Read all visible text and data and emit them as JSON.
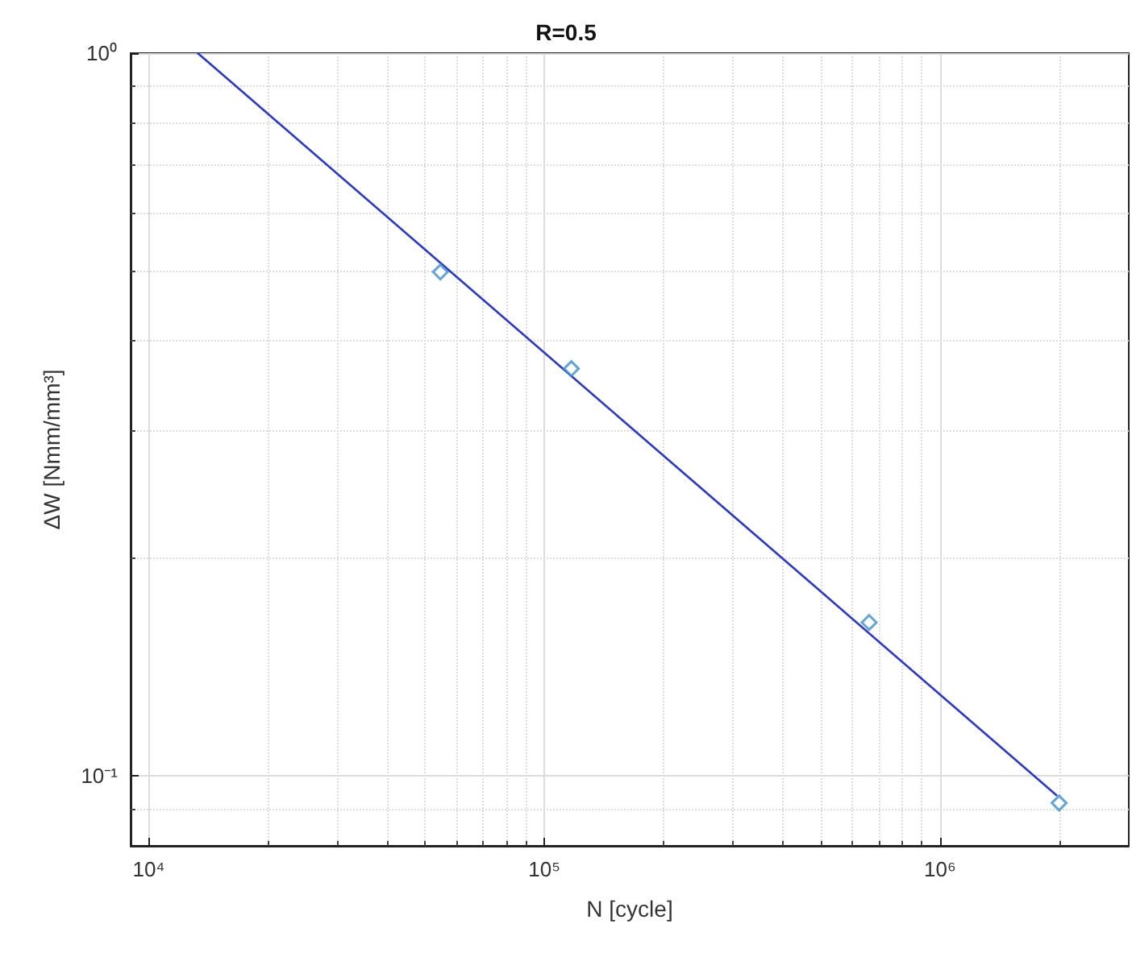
{
  "chart_data": {
    "type": "scatter",
    "title": "R=0.5",
    "xlabel": "N [cycle]",
    "ylabel": "ΔW [Nmm/mm³]",
    "log": "xy",
    "grid": true,
    "marker": "diamond",
    "xlim": [
      9000,
      3000000
    ],
    "xticks": [
      {
        "value": 10000,
        "label": "10⁴"
      },
      {
        "value": 100000,
        "label": "10⁵"
      },
      {
        "value": 1000000,
        "label": "10⁶"
      }
    ],
    "ylim": [
      0.08,
      1
    ],
    "yticks": [
      {
        "value": 0.1,
        "label": "10⁻¹"
      },
      {
        "value": 1,
        "label": "10⁰"
      }
    ],
    "series": [
      {
        "color": "#3c8fd0",
        "x": [
          54600,
          117000,
          662000,
          2000000
        ],
        "values": [
          0.498,
          0.366,
          0.163,
          0.0917
        ]
      },
      {
        "type": "line",
        "color": "#2a38cc",
        "marker": "none",
        "line_style": "solid",
        "x": [
          13300,
          1970000
        ],
        "values": [
          1,
          0.094
        ]
      }
    ]
  }
}
